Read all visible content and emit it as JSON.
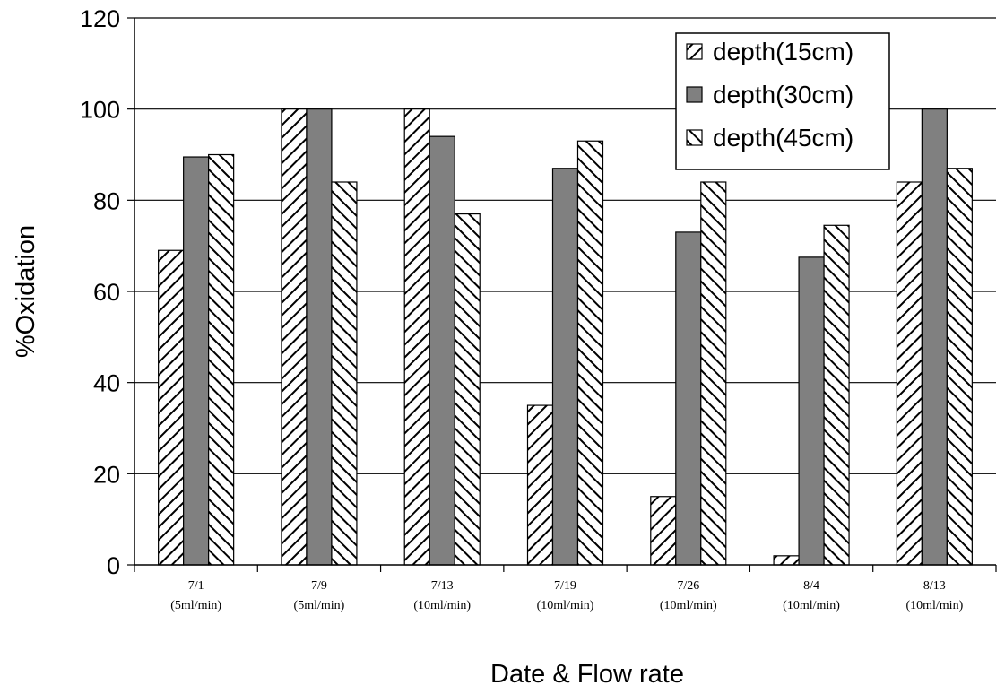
{
  "chart_data": {
    "type": "bar",
    "categories": [
      [
        "7/1",
        "(5ml/min)"
      ],
      [
        "7/9",
        "(5ml/min)"
      ],
      [
        "7/13",
        "(10ml/min)"
      ],
      [
        "7/19",
        "(10ml/min)"
      ],
      [
        "7/26",
        "(10ml/min)"
      ],
      [
        "8/4",
        "(10ml/min)"
      ],
      [
        "8/13",
        "(10ml/min)"
      ]
    ],
    "series": [
      {
        "name": "depth(15cm)",
        "pattern": "backslash-hatch",
        "color": "#000000",
        "values": [
          69,
          100,
          100,
          35,
          15,
          2,
          84
        ]
      },
      {
        "name": "depth(30cm)",
        "pattern": "solid",
        "color": "#808080",
        "values": [
          89.5,
          100,
          94,
          87,
          73,
          67.5,
          100
        ]
      },
      {
        "name": "depth(45cm)",
        "pattern": "slash-hatch",
        "color": "#000000",
        "values": [
          90,
          84,
          77,
          93,
          84,
          74.5,
          87
        ]
      }
    ],
    "xlabel": "Date & Flow rate",
    "ylabel": "%Oxidation",
    "ylim": [
      0,
      120
    ],
    "yticks": [
      0,
      20,
      40,
      60,
      80,
      100,
      120
    ],
    "grid": true,
    "legend_position": "top-right"
  }
}
